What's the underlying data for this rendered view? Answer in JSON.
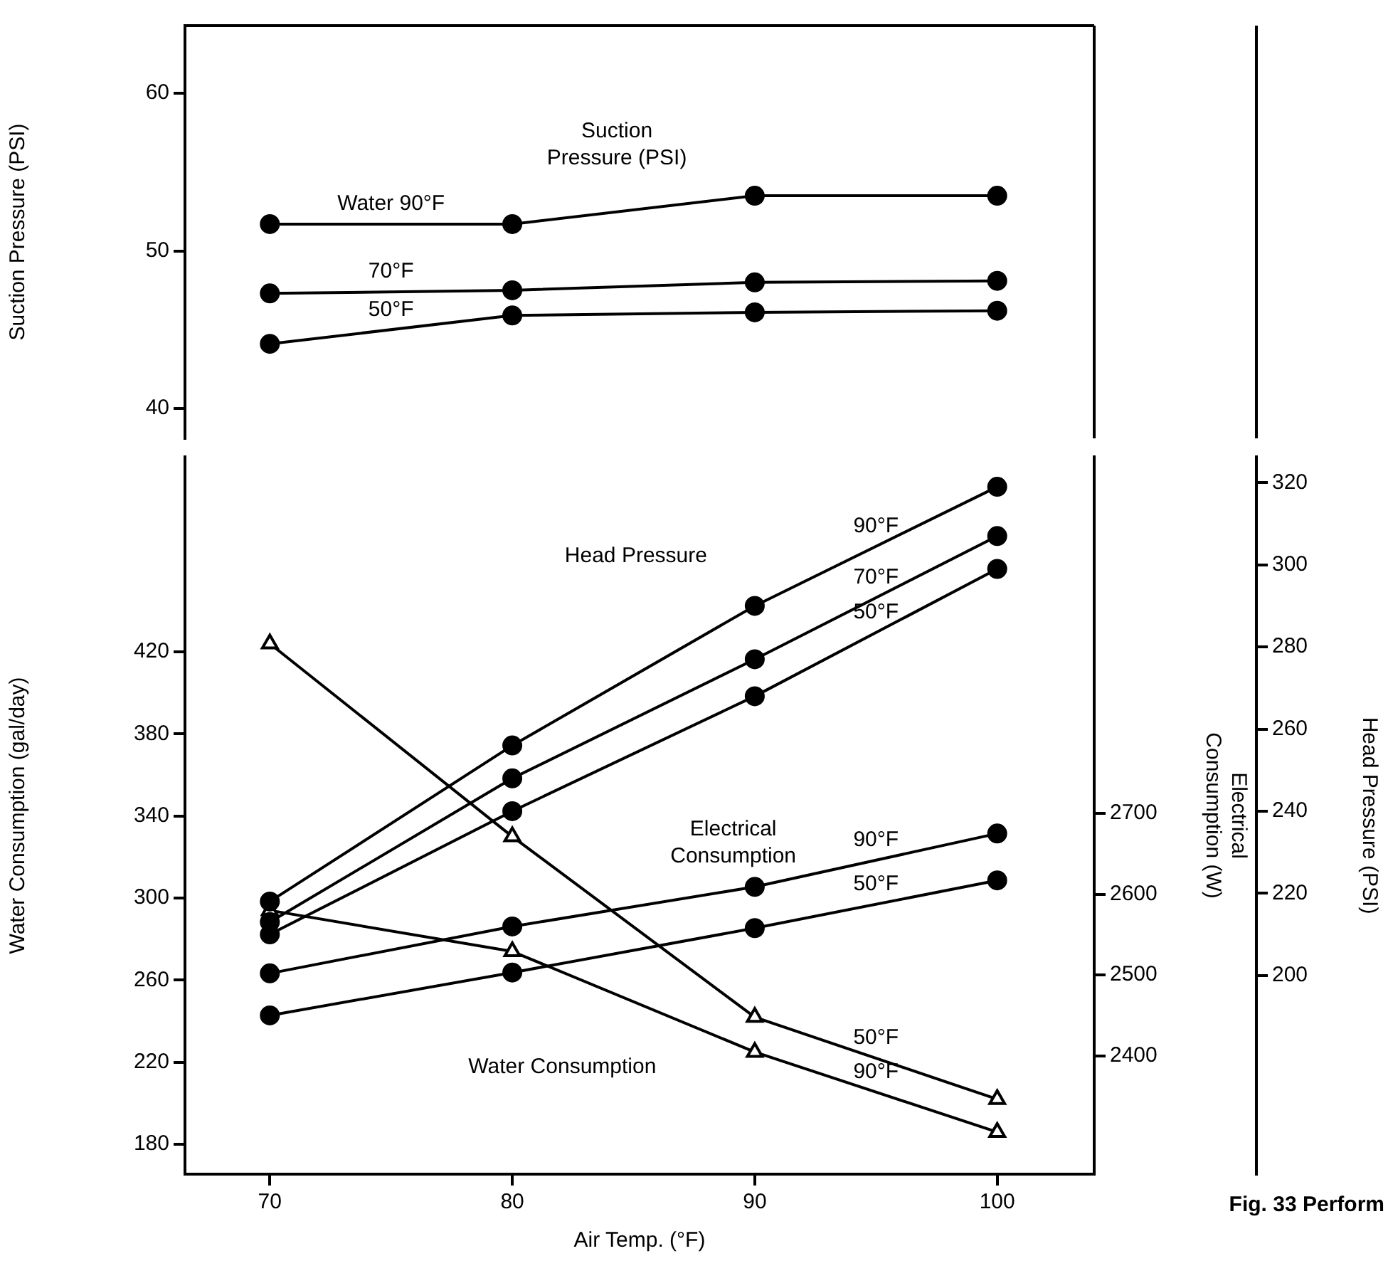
{
  "chart_data": [
    {
      "type": "line",
      "x": [
        70,
        80,
        90,
        100
      ],
      "tick_labels": "y",
      "ylabel": "Suction Pressure (PSI)",
      "ylim": [
        38.1,
        64.3
      ],
      "yticks": [
        40,
        50,
        60
      ],
      "grid": false,
      "legend": false,
      "line_style": "solid",
      "series": [
        {
          "name": "Water 90°F",
          "color": "#000000",
          "marker": "circle",
          "values": [
            51.7,
            51.7,
            53.5,
            53.5
          ]
        },
        {
          "name": "70°F",
          "color": "#000000",
          "marker": "circle",
          "values": [
            47.3,
            47.5,
            48.0,
            48.1
          ]
        },
        {
          "name": "50°F",
          "color": "#000000",
          "marker": "circle",
          "values": [
            44.1,
            45.9,
            46.1,
            46.2
          ]
        }
      ],
      "annotations": [
        "Suction Pressure (PSI)"
      ]
    },
    {
      "type": "line",
      "x": [
        70,
        80,
        90,
        100
      ],
      "xlabel": "Air Temp. (°F)",
      "xlim": [
        66.5,
        104
      ],
      "xticks": [
        70,
        80,
        90,
        100
      ],
      "ylabel": "Water Consumption (gal/day)",
      "ylim": [
        165.5,
        515
      ],
      "yticks": [
        180,
        220,
        260,
        300,
        340,
        380,
        420
      ],
      "y2label": "Head Pressure (PSI)",
      "y2lim": [
        151.6,
        326.3
      ],
      "y2ticks": [
        200,
        220,
        240,
        260,
        280,
        300,
        320
      ],
      "y3label": "Electrical Consumption (W)",
      "y3lim": [
        2253.6,
        3141
      ],
      "y3ticks": [
        2400,
        2500,
        2600,
        2700
      ],
      "grid": false,
      "legend": false,
      "line_style": "solid",
      "series": [
        {
          "name": "90°F",
          "color": "#000000",
          "axis": "y2",
          "marker": "circle",
          "values": [
            218,
            256,
            290,
            319
          ]
        },
        {
          "name": "70°F",
          "color": "#000000",
          "axis": "y2",
          "marker": "circle",
          "values": [
            213,
            248,
            277,
            307
          ]
        },
        {
          "name": "50°F",
          "color": "#000000",
          "axis": "y2",
          "marker": "circle",
          "values": [
            210,
            240,
            268,
            299
          ]
        },
        {
          "name": "90°F",
          "color": "#000000",
          "axis": "y3",
          "marker": "circle",
          "values": [
            2502,
            2560,
            2609,
            2675
          ]
        },
        {
          "name": "50°F",
          "color": "#000000",
          "axis": "y3",
          "marker": "circle",
          "values": [
            2450,
            2503,
            2558,
            2617
          ]
        },
        {
          "name": "50°F",
          "color": "#000000",
          "marker": "triangle",
          "values": [
            424,
            330,
            242,
            202
          ]
        },
        {
          "name": "90°F",
          "color": "#000000",
          "marker": "triangle",
          "values": [
            294,
            274,
            225,
            186
          ]
        }
      ],
      "annotations": [
        "Head Pressure",
        "Electrical Consumption",
        "Water Consumption",
        "Fig. 33 Perform"
      ]
    }
  ]
}
